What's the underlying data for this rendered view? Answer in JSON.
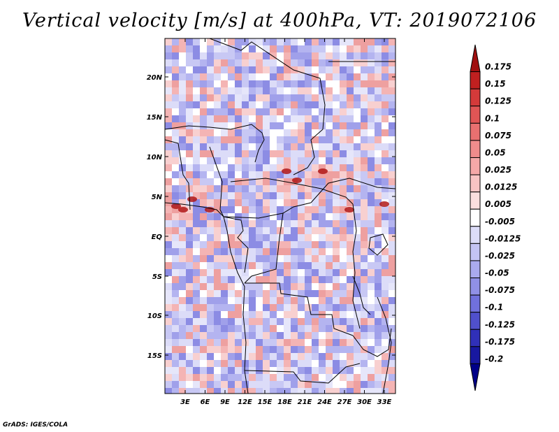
{
  "title": "Vertical velocity [m/s] at 400hPa, VT: 2019072106",
  "credit": "GrADS: IGES/COLA",
  "lat_labels": [
    "20N",
    "15N",
    "10N",
    "5N",
    "EQ",
    "5S",
    "10S",
    "15S"
  ],
  "lon_labels": [
    "3E",
    "6E",
    "9E",
    "12E",
    "15E",
    "18E",
    "21E",
    "24E",
    "27E",
    "30E",
    "33E"
  ],
  "colorbar": {
    "levels": [
      "0.175",
      "0.15",
      "0.125",
      "0.1",
      "0.075",
      "0.05",
      "0.025",
      "0.0125",
      "0.005",
      "-0.005",
      "-0.0125",
      "-0.025",
      "-0.05",
      "-0.075",
      "-0.1",
      "-0.125",
      "-0.175",
      "-0.2"
    ],
    "colors": [
      "#a01010",
      "#c02020",
      "#d43a3a",
      "#e05555",
      "#e87070",
      "#f08c8c",
      "#f5a8a8",
      "#f8c4c4",
      "#fbdede",
      "#ffffff",
      "#dcdcf8",
      "#c4c4f4",
      "#aaaaee",
      "#9090e6",
      "#7070dc",
      "#5050cc",
      "#3030b8",
      "#1818a0",
      "#000088"
    ]
  }
}
